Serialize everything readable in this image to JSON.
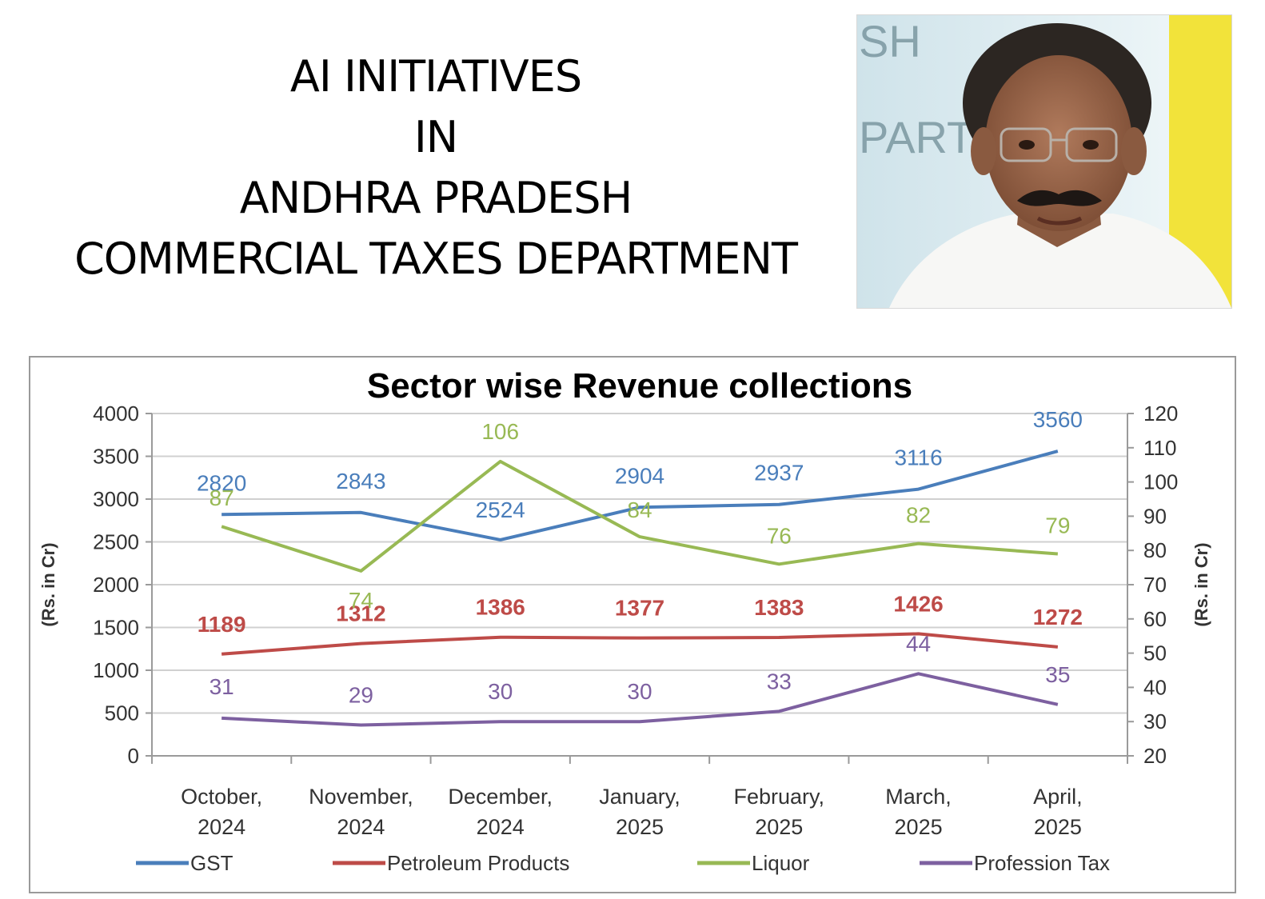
{
  "slide": {
    "title_lines": [
      "AI INITIATIVES",
      "IN",
      "ANDHRA PRADESH",
      "COMMERCIAL TAXES DEPARTMENT"
    ],
    "photo_background_text": [
      "SH",
      "PART"
    ]
  },
  "chart_data": {
    "type": "line",
    "title": "Sector wise Revenue collections",
    "categories": [
      [
        "October,",
        "2024"
      ],
      [
        "November,",
        "2024"
      ],
      [
        "December,",
        "2024"
      ],
      [
        "January,",
        "2025"
      ],
      [
        "February,",
        "2025"
      ],
      [
        "March,",
        "2025"
      ],
      [
        "April,",
        "2025"
      ]
    ],
    "y_left": {
      "label": "(Rs. in Cr)",
      "min": 0,
      "max": 4000,
      "step": 500
    },
    "y_right": {
      "label": "(Rs. in Cr)",
      "min": 20,
      "max": 120,
      "step": 10
    },
    "grid": true,
    "legend_position": "bottom",
    "series": [
      {
        "name": "GST",
        "axis": "left",
        "color": "#4a7ebb",
        "values": [
          2820,
          2843,
          2524,
          2904,
          2937,
          3116,
          3560
        ]
      },
      {
        "name": "Petroleum Products",
        "axis": "left",
        "color": "#be4b48",
        "values": [
          1189,
          1312,
          1386,
          1377,
          1383,
          1426,
          1272
        ]
      },
      {
        "name": "Liquor",
        "axis": "right",
        "color": "#98b954",
        "values": [
          87,
          74,
          106,
          84,
          76,
          82,
          79
        ]
      },
      {
        "name": "Profession Tax",
        "axis": "right",
        "color": "#7d60a0",
        "values": [
          31,
          29,
          30,
          30,
          33,
          44,
          35
        ]
      }
    ]
  }
}
